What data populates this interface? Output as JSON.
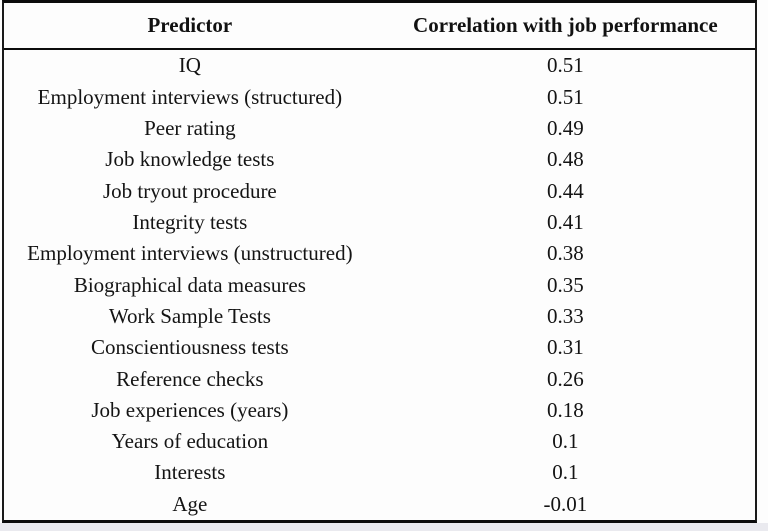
{
  "table": {
    "columns": [
      "Predictor",
      "Correlation with job performance"
    ],
    "rows": [
      {
        "predictor": "IQ",
        "correlation": "0.51"
      },
      {
        "predictor": "Employment interviews (structured)",
        "correlation": "0.51"
      },
      {
        "predictor": "Peer rating",
        "correlation": "0.49"
      },
      {
        "predictor": "Job knowledge tests",
        "correlation": "0.48"
      },
      {
        "predictor": "Job tryout procedure",
        "correlation": "0.44"
      },
      {
        "predictor": "Integrity tests",
        "correlation": "0.41"
      },
      {
        "predictor": "Employment interviews (unstructured)",
        "correlation": "0.38"
      },
      {
        "predictor": "Biographical data measures",
        "correlation": "0.35"
      },
      {
        "predictor": "Work Sample Tests",
        "correlation": "0.33"
      },
      {
        "predictor": "Conscientiousness tests",
        "correlation": "0.31"
      },
      {
        "predictor": "Reference checks",
        "correlation": "0.26"
      },
      {
        "predictor": "Job experiences (years)",
        "correlation": "0.18"
      },
      {
        "predictor": "Years of education",
        "correlation": "0.1"
      },
      {
        "predictor": "Interests",
        "correlation": "0.1"
      },
      {
        "predictor": "Age",
        "correlation": "-0.01"
      }
    ]
  },
  "colors": {
    "border": "#0c0c0c",
    "text": "#141414",
    "background": "#fdfdfd",
    "outer_strip": "#eaeaef"
  },
  "chart_data": {
    "type": "table",
    "title": "",
    "columns": [
      "Predictor",
      "Correlation with job performance"
    ],
    "categories": [
      "IQ",
      "Employment interviews (structured)",
      "Peer rating",
      "Job knowledge tests",
      "Job tryout procedure",
      "Integrity tests",
      "Employment interviews (unstructured)",
      "Biographical data measures",
      "Work Sample Tests",
      "Conscientiousness tests",
      "Reference checks",
      "Job experiences (years)",
      "Years of education",
      "Interests",
      "Age"
    ],
    "values": [
      0.51,
      0.51,
      0.49,
      0.48,
      0.44,
      0.41,
      0.38,
      0.35,
      0.33,
      0.31,
      0.26,
      0.18,
      0.1,
      0.1,
      -0.01
    ]
  }
}
